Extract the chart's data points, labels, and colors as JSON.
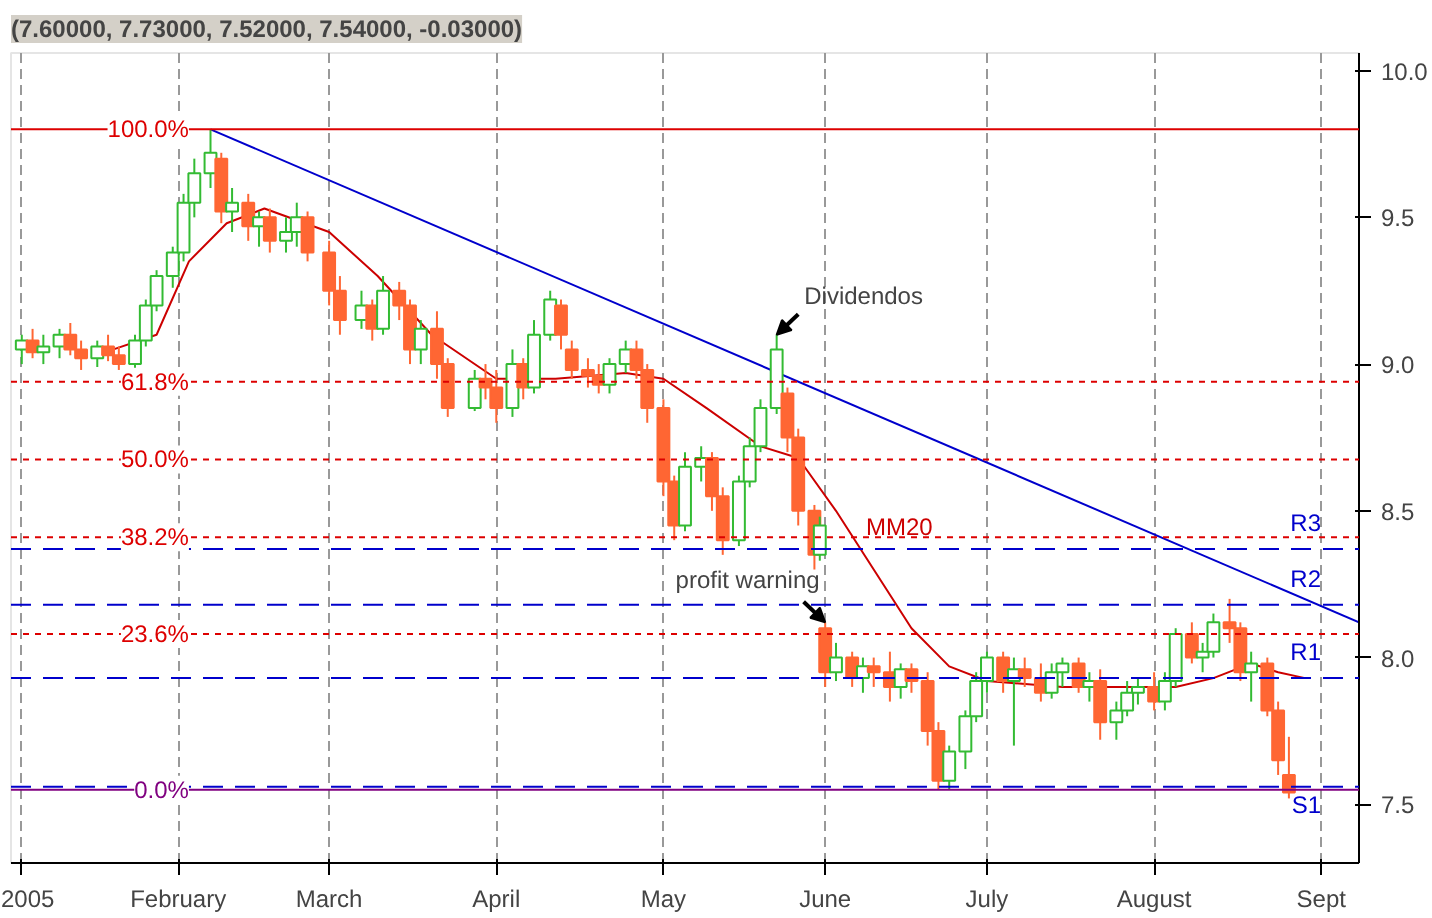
{
  "chart_data": {
    "type": "candlestick",
    "title": "(7.60000, 7.73000, 7.52000, 7.54000, -0.03000)",
    "x": [
      "2005-01-03",
      "2005-01-05",
      "2005-01-07",
      "2005-01-10",
      "2005-01-12",
      "2005-01-14",
      "2005-01-17",
      "2005-01-19",
      "2005-01-21",
      "2005-01-24",
      "2005-01-26",
      "2005-01-28",
      "2005-01-31",
      "2005-02-02",
      "2005-02-04",
      "2005-02-07",
      "2005-02-09",
      "2005-02-11",
      "2005-02-14",
      "2005-02-16",
      "2005-02-18",
      "2005-02-21",
      "2005-02-23",
      "2005-02-25",
      "2005-03-01",
      "2005-03-03",
      "2005-03-07",
      "2005-03-09",
      "2005-03-11",
      "2005-03-14",
      "2005-03-16",
      "2005-03-18",
      "2005-03-21",
      "2005-03-23",
      "2005-03-28",
      "2005-03-30",
      "2005-04-01",
      "2005-04-04",
      "2005-04-06",
      "2005-04-08",
      "2005-04-11",
      "2005-04-13",
      "2005-04-15",
      "2005-04-18",
      "2005-04-20",
      "2005-04-22",
      "2005-04-25",
      "2005-04-27",
      "2005-04-29",
      "2005-05-02",
      "2005-05-04",
      "2005-05-06",
      "2005-05-09",
      "2005-05-11",
      "2005-05-13",
      "2005-05-16",
      "2005-05-18",
      "2005-05-20",
      "2005-05-23",
      "2005-05-25",
      "2005-05-27",
      "2005-05-30",
      "2005-05-31",
      "2005-06-01",
      "2005-06-03",
      "2005-06-06",
      "2005-06-08",
      "2005-06-10",
      "2005-06-13",
      "2005-06-15",
      "2005-06-17",
      "2005-06-20",
      "2005-06-22",
      "2005-06-24",
      "2005-06-27",
      "2005-06-29",
      "2005-07-01",
      "2005-07-04",
      "2005-07-06",
      "2005-07-08",
      "2005-07-11",
      "2005-07-13",
      "2005-07-15",
      "2005-07-18",
      "2005-07-20",
      "2005-07-22",
      "2005-07-25",
      "2005-07-27",
      "2005-07-29",
      "2005-08-01",
      "2005-08-03",
      "2005-08-05",
      "2005-08-08",
      "2005-08-10",
      "2005-08-12",
      "2005-08-15",
      "2005-08-17",
      "2005-08-19",
      "2005-08-22",
      "2005-08-24",
      "2005-08-26"
    ],
    "ohlc": [
      [
        9.05,
        9.1,
        9.0,
        9.08
      ],
      [
        9.08,
        9.12,
        9.02,
        9.04
      ],
      [
        9.04,
        9.1,
        9.0,
        9.06
      ],
      [
        9.06,
        9.12,
        9.02,
        9.1
      ],
      [
        9.1,
        9.14,
        9.03,
        9.05
      ],
      [
        9.05,
        9.08,
        8.98,
        9.02
      ],
      [
        9.02,
        9.08,
        8.99,
        9.06
      ],
      [
        9.06,
        9.1,
        9.01,
        9.03
      ],
      [
        9.03,
        9.06,
        8.98,
        9.0
      ],
      [
        9.0,
        9.1,
        8.98,
        9.08
      ],
      [
        9.08,
        9.22,
        9.06,
        9.2
      ],
      [
        9.2,
        9.32,
        9.18,
        9.3
      ],
      [
        9.3,
        9.4,
        9.26,
        9.38
      ],
      [
        9.38,
        9.58,
        9.35,
        9.55
      ],
      [
        9.55,
        9.7,
        9.5,
        9.65
      ],
      [
        9.65,
        9.8,
        9.6,
        9.72
      ],
      [
        9.7,
        9.72,
        9.48,
        9.52
      ],
      [
        9.52,
        9.6,
        9.45,
        9.55
      ],
      [
        9.55,
        9.58,
        9.42,
        9.47
      ],
      [
        9.47,
        9.52,
        9.4,
        9.5
      ],
      [
        9.5,
        9.53,
        9.38,
        9.42
      ],
      [
        9.42,
        9.5,
        9.38,
        9.45
      ],
      [
        9.45,
        9.55,
        9.4,
        9.5
      ],
      [
        9.5,
        9.52,
        9.35,
        9.38
      ],
      [
        9.38,
        9.42,
        9.2,
        9.25
      ],
      [
        9.25,
        9.3,
        9.1,
        9.15
      ],
      [
        9.15,
        9.25,
        9.12,
        9.2
      ],
      [
        9.2,
        9.22,
        9.08,
        9.12
      ],
      [
        9.12,
        9.3,
        9.1,
        9.25
      ],
      [
        9.25,
        9.28,
        9.15,
        9.2
      ],
      [
        9.2,
        9.22,
        9.0,
        9.05
      ],
      [
        9.05,
        9.15,
        9.0,
        9.12
      ],
      [
        9.12,
        9.18,
        8.95,
        9.0
      ],
      [
        9.0,
        9.02,
        8.82,
        8.85
      ],
      [
        8.85,
        8.98,
        8.84,
        8.95
      ],
      [
        8.95,
        9.0,
        8.88,
        8.92
      ],
      [
        8.92,
        8.98,
        8.8,
        8.85
      ],
      [
        8.85,
        9.05,
        8.82,
        9.0
      ],
      [
        9.0,
        9.02,
        8.88,
        8.92
      ],
      [
        8.92,
        9.15,
        8.9,
        9.1
      ],
      [
        9.1,
        9.25,
        9.08,
        9.22
      ],
      [
        9.2,
        9.22,
        9.05,
        9.1
      ],
      [
        9.05,
        9.08,
        8.95,
        8.98
      ],
      [
        8.98,
        9.02,
        8.92,
        8.96
      ],
      [
        8.96,
        9.0,
        8.9,
        8.93
      ],
      [
        8.93,
        9.02,
        8.9,
        9.0
      ],
      [
        9.0,
        9.08,
        8.97,
        9.05
      ],
      [
        9.05,
        9.08,
        8.95,
        8.98
      ],
      [
        8.98,
        9.0,
        8.8,
        8.85
      ],
      [
        8.85,
        8.88,
        8.55,
        8.6
      ],
      [
        8.6,
        8.62,
        8.4,
        8.45
      ],
      [
        8.45,
        8.7,
        8.43,
        8.65
      ],
      [
        8.65,
        8.72,
        8.6,
        8.68
      ],
      [
        8.68,
        8.7,
        8.5,
        8.55
      ],
      [
        8.55,
        8.58,
        8.35,
        8.4
      ],
      [
        8.4,
        8.62,
        8.38,
        8.6
      ],
      [
        8.6,
        8.75,
        8.58,
        8.72
      ],
      [
        8.72,
        8.88,
        8.7,
        8.85
      ],
      [
        8.85,
        9.1,
        8.83,
        9.05
      ],
      [
        8.9,
        8.92,
        8.7,
        8.75
      ],
      [
        8.75,
        8.78,
        8.45,
        8.5
      ],
      [
        8.5,
        8.52,
        8.3,
        8.35
      ],
      [
        8.35,
        8.48,
        8.33,
        8.45
      ],
      [
        8.1,
        8.12,
        7.9,
        7.95
      ],
      [
        7.95,
        8.05,
        7.92,
        8.0
      ],
      [
        8.0,
        8.02,
        7.9,
        7.93
      ],
      [
        7.93,
        8.0,
        7.88,
        7.97
      ],
      [
        7.97,
        8.0,
        7.9,
        7.95
      ],
      [
        7.95,
        8.02,
        7.85,
        7.9
      ],
      [
        7.9,
        7.98,
        7.86,
        7.96
      ],
      [
        7.96,
        7.98,
        7.88,
        7.92
      ],
      [
        7.92,
        7.95,
        7.7,
        7.75
      ],
      [
        7.75,
        7.78,
        7.55,
        7.58
      ],
      [
        7.58,
        7.7,
        7.55,
        7.68
      ],
      [
        7.68,
        7.82,
        7.62,
        7.8
      ],
      [
        7.8,
        7.95,
        7.78,
        7.92
      ],
      [
        7.92,
        8.02,
        7.88,
        8.0
      ],
      [
        8.0,
        8.02,
        7.88,
        7.92
      ],
      [
        7.92,
        8.0,
        7.7,
        7.96
      ],
      [
        7.96,
        8.0,
        7.9,
        7.93
      ],
      [
        7.93,
        7.98,
        7.85,
        7.88
      ],
      [
        7.88,
        7.98,
        7.86,
        7.95
      ],
      [
        7.95,
        8.0,
        7.9,
        7.98
      ],
      [
        7.98,
        8.0,
        7.88,
        7.9
      ],
      [
        7.9,
        7.95,
        7.85,
        7.92
      ],
      [
        7.92,
        7.96,
        7.72,
        7.78
      ],
      [
        7.78,
        7.85,
        7.72,
        7.82
      ],
      [
        7.82,
        7.92,
        7.8,
        7.88
      ],
      [
        7.88,
        7.93,
        7.84,
        7.9
      ],
      [
        7.9,
        7.95,
        7.82,
        7.85
      ],
      [
        7.85,
        7.95,
        7.82,
        7.92
      ],
      [
        7.92,
        8.1,
        7.9,
        8.08
      ],
      [
        8.08,
        8.12,
        7.98,
        8.0
      ],
      [
        8.0,
        8.05,
        7.95,
        8.02
      ],
      [
        8.02,
        8.15,
        8.0,
        8.12
      ],
      [
        8.12,
        8.2,
        8.05,
        8.1
      ],
      [
        8.1,
        8.12,
        7.92,
        7.95
      ],
      [
        7.95,
        8.02,
        7.85,
        7.98
      ],
      [
        7.98,
        8.0,
        7.8,
        7.82
      ],
      [
        7.82,
        7.85,
        7.6,
        7.65
      ],
      [
        7.6,
        7.73,
        7.52,
        7.54
      ]
    ],
    "series": [
      {
        "type": "line",
        "name": "MM20",
        "color": "#cc0000",
        "x": [
          "2005-01-20",
          "2005-01-28",
          "2005-02-03",
          "2005-02-10",
          "2005-02-17",
          "2005-03-01",
          "2005-03-10",
          "2005-03-20",
          "2005-04-01",
          "2005-04-12",
          "2005-04-25",
          "2005-05-02",
          "2005-05-10",
          "2005-05-20",
          "2005-05-27",
          "2005-06-03",
          "2005-06-10",
          "2005-06-17",
          "2005-06-24",
          "2005-07-01",
          "2005-07-15",
          "2005-07-29",
          "2005-08-05",
          "2005-08-12",
          "2005-08-19",
          "2005-08-24",
          "2005-08-29"
        ],
        "values": [
          9.05,
          9.1,
          9.35,
          9.48,
          9.53,
          9.45,
          9.3,
          9.1,
          8.95,
          8.95,
          8.97,
          8.95,
          8.85,
          8.72,
          8.68,
          8.5,
          8.3,
          8.1,
          7.97,
          7.92,
          7.9,
          7.9,
          7.9,
          7.93,
          7.98,
          7.95,
          7.93
        ]
      },
      {
        "type": "line",
        "color": "#0000cc",
        "x": [
          "2005-02-07",
          "2005-09-08"
        ],
        "values": [
          9.8,
          8.12
        ]
      }
    ],
    "ref_lines": [
      {
        "axis": "y",
        "value": 9.8,
        "color": "#dd0000",
        "line_style": "solid"
      },
      {
        "axis": "y",
        "value": 8.94,
        "color": "#dd0000",
        "line_style": "dotted"
      },
      {
        "axis": "y",
        "value": 8.675,
        "color": "#dd0000",
        "line_style": "dotted"
      },
      {
        "axis": "y",
        "value": 8.41,
        "color": "#dd0000",
        "line_style": "dotted"
      },
      {
        "axis": "y",
        "value": 8.08,
        "color": "#dd0000",
        "line_style": "dotted"
      },
      {
        "axis": "y",
        "value": 7.55,
        "color": "#800080",
        "line_style": "solid"
      },
      {
        "axis": "y",
        "value": 8.37,
        "label": "R3",
        "color": "#0000cc",
        "line_style": "dashed"
      },
      {
        "axis": "y",
        "value": 8.18,
        "label": "R2",
        "color": "#0000cc",
        "line_style": "dashed"
      },
      {
        "axis": "y",
        "value": 7.93,
        "label": "R1",
        "color": "#0000cc",
        "line_style": "dashed"
      },
      {
        "axis": "y",
        "value": 7.56,
        "label": "S1",
        "color": "#0000cc",
        "line_style": "dashed"
      }
    ],
    "annotations": [
      {
        "text": "Dividendos",
        "x": "2005-05-23",
        "y": 9.1
      },
      {
        "text": "profit warning",
        "x": "2005-06-01",
        "y": 8.12
      },
      {
        "text": "100.0%",
        "x": "2005-02-03",
        "y": 9.8
      },
      {
        "text": "61.8%",
        "x": "2005-02-03",
        "y": 8.94
      },
      {
        "text": "50.0%",
        "x": "2005-02-03",
        "y": 8.675
      },
      {
        "text": "38.2%",
        "x": "2005-02-03",
        "y": 8.41
      },
      {
        "text": "23.6%",
        "x": "2005-02-03",
        "y": 8.08
      },
      {
        "text": "0.0%",
        "x": "2005-02-03",
        "y": 7.55
      }
    ],
    "xlim": [
      "2005-01-01",
      "2005-09-08"
    ],
    "xticks": [
      {
        "value": "2005-01-03",
        "label": "2005"
      },
      {
        "value": "2005-02-01",
        "label": "February"
      },
      {
        "value": "2005-03-01",
        "label": "March"
      },
      {
        "value": "2005-04-01",
        "label": "April"
      },
      {
        "value": "2005-05-02",
        "label": "May"
      },
      {
        "value": "2005-06-01",
        "label": "June"
      },
      {
        "value": "2005-07-01",
        "label": "July"
      },
      {
        "value": "2005-08-01",
        "label": "August"
      },
      {
        "value": "2005-09-01",
        "label": "Sept"
      }
    ],
    "ylim": [
      7.3,
      10.06
    ],
    "yticks": [
      {
        "value": 7.5,
        "label": "7.5"
      },
      {
        "value": 8,
        "label": "8.0"
      },
      {
        "value": 8.5,
        "label": "8.5"
      },
      {
        "value": 9,
        "label": "9.0"
      },
      {
        "value": 9.5,
        "label": "9.5"
      },
      {
        "value": 10,
        "label": "10.0"
      }
    ],
    "grid": "x"
  }
}
